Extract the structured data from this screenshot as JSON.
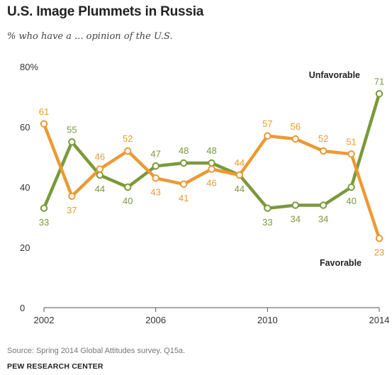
{
  "header": {
    "title": "U.S. Image Plummets in Russia",
    "subtitle": "% who have a ... opinion of the U.S."
  },
  "footer": {
    "source": "Source: Spring 2014 Global Attitudes survey. Q15a.",
    "org": "PEW RESEARCH CENTER"
  },
  "chart_data": {
    "type": "line",
    "title": "U.S. Image Plummets in Russia",
    "subtitle": "% who have a ... opinion of the U.S.",
    "x": [
      2002,
      2003,
      2004,
      2005,
      2006,
      2007,
      2008,
      2009,
      2010,
      2011,
      2012,
      2013,
      2014
    ],
    "x_tick_labels": [
      "2002",
      "2006",
      "2010",
      "2014"
    ],
    "y_tick_labels": [
      "0",
      "20",
      "40",
      "60",
      "80%"
    ],
    "ylim": [
      0,
      80
    ],
    "grid": false,
    "series": [
      {
        "name": "Unfavorable",
        "color": "#7b993a",
        "values": [
          33,
          55,
          44,
          40,
          47,
          48,
          48,
          44,
          33,
          34,
          34,
          40,
          71
        ],
        "labels": [
          "33",
          "55",
          "44",
          "40",
          "47",
          "48",
          "48",
          "44",
          "33",
          "34",
          "34",
          "40",
          "71"
        ]
      },
      {
        "name": "Favorable",
        "color": "#eb9a34",
        "values": [
          61,
          37,
          46,
          52,
          43,
          41,
          46,
          44,
          57,
          56,
          52,
          51,
          23
        ],
        "labels": [
          "61",
          "37",
          "46",
          "52",
          "43",
          "41",
          "46",
          "44",
          "57",
          "56",
          "52",
          "51",
          "23"
        ]
      }
    ]
  }
}
